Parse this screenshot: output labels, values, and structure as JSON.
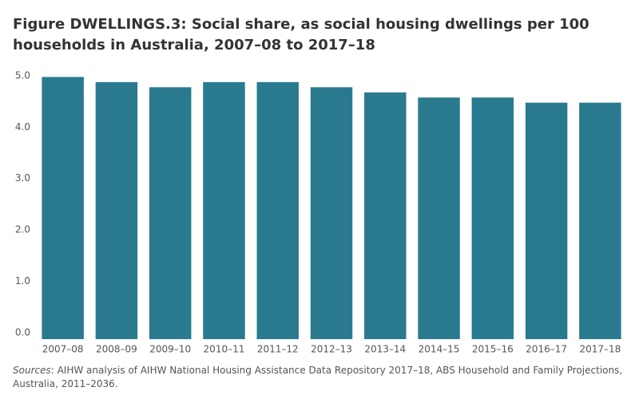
{
  "chart_data": {
    "type": "bar",
    "title": "Figure DWELLINGS.3: Social share, as social housing dwellings per 100 households in Australia, 2007–08 to 2017–18",
    "categories": [
      "2007–08",
      "2008–09",
      "2009–10",
      "2010–11",
      "2011–12",
      "2012–13",
      "2013–14",
      "2014–15",
      "2015–16",
      "2016–17",
      "2017–18"
    ],
    "values": [
      5.1,
      5.0,
      4.9,
      5.0,
      5.0,
      4.9,
      4.8,
      4.7,
      4.7,
      4.6,
      4.6
    ],
    "color": "#2a7a8f",
    "ylim": [
      0,
      5.2
    ],
    "yticks": [
      {
        "value": 0,
        "label": "0.0"
      },
      {
        "value": 1,
        "label": "1.0"
      },
      {
        "value": 2,
        "label": "2.0"
      },
      {
        "value": 3,
        "label": "3.0"
      },
      {
        "value": 4,
        "label": "4.0"
      },
      {
        "value": 5,
        "label": "5.0"
      }
    ],
    "grid": false,
    "source_label": "Sources",
    "source_text": ": AIHW analysis of AIHW National Housing Assistance Data Repository 2017–18, ABS Household and Family Projections, Australia, 2011–2036."
  }
}
